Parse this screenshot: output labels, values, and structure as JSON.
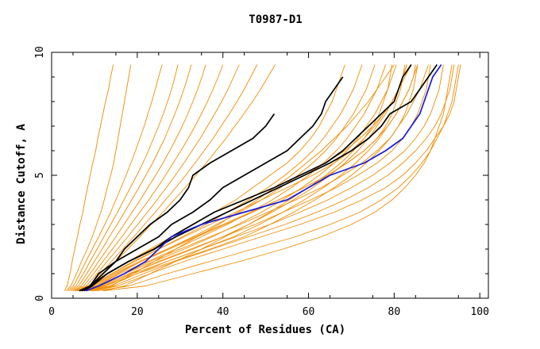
{
  "chart_data": {
    "type": "line",
    "title": "T0987-D1",
    "xlabel": "Percent of Residues (CA)",
    "ylabel": "Distance Cutoff, A",
    "xlim": [
      0,
      102
    ],
    "ylim": [
      0,
      10
    ],
    "xticks": [
      0,
      20,
      40,
      60,
      80,
      100
    ],
    "yticks": [
      0,
      5,
      10
    ],
    "grid": false,
    "colors": {
      "bundle": "#f08c00",
      "highlight_black": "#000000",
      "highlight_blue": "#1a1adc"
    },
    "y_levels": [
      0.3,
      0.5,
      1,
      1.5,
      2,
      2.5,
      3,
      3.5,
      4,
      4.5,
      5,
      5.5,
      6,
      6.5,
      7,
      7.5,
      8,
      8.5,
      9,
      9.5
    ],
    "series": [
      {
        "role": "highlight",
        "color": "#000000",
        "x": [
          7,
          9,
          11,
          15,
          17,
          20,
          23,
          27,
          30,
          32,
          33,
          37,
          42,
          47,
          50,
          52
        ]
      },
      {
        "role": "highlight",
        "color": "#000000",
        "x": [
          6.5,
          9,
          12,
          15,
          20,
          25,
          28,
          33,
          37,
          40,
          45,
          50,
          55,
          58,
          61,
          63,
          64,
          66,
          68
        ]
      },
      {
        "role": "highlight",
        "color": "#000000",
        "x": [
          7,
          9,
          13,
          18,
          24,
          28,
          33,
          38,
          45,
          52,
          58,
          64,
          68,
          71,
          74,
          77,
          80,
          81,
          82,
          84,
          87,
          89,
          91
        ]
      },
      {
        "role": "highlight",
        "color": "#000000",
        "x": [
          7.5,
          9.5,
          13,
          18,
          24,
          29,
          35,
          41,
          47,
          53,
          59,
          65,
          70,
          74,
          77,
          79,
          84,
          86,
          88,
          90,
          92,
          93
        ]
      },
      {
        "role": "highlight",
        "color": "#1a1adc",
        "x": [
          8,
          11,
          17,
          22,
          25,
          28,
          35,
          45,
          55,
          60,
          65,
          73,
          78,
          82,
          84,
          86,
          87,
          88,
          89,
          91,
          93,
          94
        ]
      },
      {
        "role": "bundle",
        "x": [
          3.0,
          3.6,
          4.3,
          4.8,
          5.4,
          6.0,
          6.6,
          7.3,
          7.8,
          8.4,
          9.0,
          9.6,
          10.3,
          10.8,
          11.4,
          12.0,
          12.6,
          13.3,
          13.8,
          14.4
        ]
      },
      {
        "role": "bundle",
        "x": [
          3.4,
          4.5,
          5.8,
          7.0,
          8.3,
          9.5,
          10.5,
          11.5,
          12.3,
          13.0,
          13.8,
          14.5,
          15.0,
          15.5,
          16.0,
          16.5,
          17.0,
          17.5,
          18.0,
          18.5
        ]
      },
      {
        "role": "bundle",
        "x": [
          3.8,
          5.1,
          6.6,
          8.0,
          9.5,
          11.0,
          12.4,
          13.8,
          15.0,
          16.2,
          17.4,
          18.5,
          19.6,
          20.6,
          21.6,
          22.5,
          23.4,
          24.2,
          25.0,
          25.8
        ]
      },
      {
        "role": "bundle",
        "x": [
          4.2,
          5.7,
          7.4,
          9.0,
          10.6,
          12.2,
          13.8,
          15.4,
          16.9,
          18.4,
          19.9,
          21.3,
          22.6,
          23.8,
          25.0,
          26.1,
          27.1,
          28.0,
          28.8,
          29.5
        ]
      },
      {
        "role": "bundle",
        "x": [
          4.6,
          6.3,
          8.2,
          10.0,
          11.8,
          13.5,
          15.3,
          17.0,
          18.7,
          20.4,
          22.0,
          23.6,
          25.0,
          26.4,
          27.6,
          28.8,
          29.9,
          30.9,
          31.8,
          32.6
        ]
      },
      {
        "role": "bundle",
        "x": [
          5.0,
          6.9,
          9.0,
          11.0,
          13.0,
          15.0,
          16.9,
          18.8,
          20.7,
          22.5,
          24.3,
          26.0,
          27.6,
          29.1,
          30.5,
          31.8,
          33.0,
          34.1,
          35.1,
          36.0
        ]
      },
      {
        "role": "bundle",
        "x": [
          5.4,
          7.5,
          9.8,
          12.0,
          14.2,
          16.4,
          18.5,
          20.6,
          22.7,
          24.7,
          26.6,
          28.4,
          30.2,
          31.9,
          33.5,
          35.0,
          36.4,
          37.7,
          38.9,
          40.0
        ]
      },
      {
        "role": "bundle",
        "x": [
          5.8,
          8.1,
          10.6,
          13.0,
          15.4,
          17.8,
          20.1,
          22.4,
          24.6,
          26.8,
          28.9,
          30.9,
          32.8,
          34.7,
          36.4,
          38.1,
          39.7,
          41.2,
          42.5,
          43.8
        ]
      },
      {
        "role": "bundle",
        "x": [
          6.2,
          8.7,
          11.4,
          14.0,
          16.6,
          19.2,
          21.7,
          24.2,
          26.6,
          29.0,
          31.3,
          33.5,
          35.6,
          37.7,
          39.6,
          41.5,
          43.3,
          45.0,
          46.5,
          48.0
        ]
      },
      {
        "role": "bundle",
        "x": [
          6.6,
          9.3,
          12.2,
          15.0,
          17.8,
          20.6,
          23.3,
          26.0,
          28.6,
          31.2,
          33.7,
          36.1,
          38.4,
          40.7,
          42.8,
          44.9,
          46.9,
          48.8,
          50.5,
          52.2
        ]
      },
      {
        "role": "bundle",
        "x": [
          6.0,
          9.0,
          13.0,
          18.0,
          23.0,
          28.0,
          33.0,
          38.0,
          43.0,
          47.0,
          51.0,
          55.0,
          58.0,
          60.5,
          62.5,
          64.0,
          65.5,
          66.5,
          67.5,
          68.5
        ]
      },
      {
        "role": "bundle",
        "x": [
          6.3,
          9.5,
          14.0,
          19.5,
          25.0,
          30.5,
          36.0,
          41.0,
          46.0,
          50.5,
          54.5,
          58.0,
          61.0,
          63.5,
          65.5,
          67.5,
          69.0,
          70.5,
          71.5,
          72.5
        ]
      },
      {
        "role": "bundle",
        "x": [
          6.6,
          10.0,
          15.0,
          21.0,
          27.0,
          33.0,
          38.5,
          44.0,
          49.0,
          53.5,
          57.5,
          61.0,
          64.0,
          66.5,
          68.5,
          70.5,
          72.0,
          73.5,
          74.5,
          75.5
        ]
      },
      {
        "role": "bundle",
        "x": [
          6.9,
          10.5,
          16.0,
          22.5,
          29.0,
          35.0,
          41.0,
          46.5,
          51.5,
          56.0,
          60.0,
          63.5,
          66.5,
          69.0,
          71.0,
          73.0,
          74.5,
          76.0,
          77.0,
          78.0
        ]
      },
      {
        "role": "bundle",
        "x": [
          7.2,
          11.0,
          17.0,
          24.0,
          31.0,
          37.5,
          43.5,
          49.0,
          54.0,
          58.5,
          62.5,
          66.0,
          69.0,
          71.5,
          73.5,
          75.5,
          77.0,
          78.5,
          79.5,
          80.5
        ]
      },
      {
        "role": "bundle",
        "x": [
          7.5,
          11.5,
          18.0,
          25.5,
          33.0,
          40.0,
          46.0,
          51.5,
          56.5,
          61.0,
          65.0,
          68.5,
          71.5,
          74.0,
          76.0,
          78.0,
          79.5,
          81.0,
          82.0,
          83.0
        ]
      },
      {
        "role": "bundle",
        "x": [
          7.8,
          12.0,
          19.0,
          27.0,
          35.0,
          42.5,
          48.5,
          54.0,
          59.0,
          63.5,
          67.5,
          71.0,
          74.0,
          76.5,
          78.5,
          80.5,
          82.0,
          83.5,
          84.5,
          85.5
        ]
      },
      {
        "role": "bundle",
        "x": [
          8.1,
          12.5,
          20.0,
          28.5,
          37.0,
          45.0,
          51.0,
          56.5,
          61.5,
          66.0,
          70.0,
          73.5,
          76.5,
          79.0,
          81.0,
          83.0,
          84.5,
          86.0,
          87.0,
          88.0
        ]
      },
      {
        "role": "bundle",
        "x": [
          6.5,
          9.5,
          14.0,
          19.0,
          25.0,
          31.0,
          37.0,
          43.0,
          49.0,
          55.0,
          61.0,
          66.0,
          70.0,
          73.0,
          75.0,
          76.5,
          77.5,
          78.5,
          79.0,
          79.5
        ]
      },
      {
        "role": "bundle",
        "x": [
          7.0,
          10.5,
          15.5,
          21.0,
          27.5,
          34.0,
          40.5,
          47.0,
          53.0,
          59.0,
          64.5,
          69.0,
          73.0,
          76.0,
          78.0,
          79.5,
          80.5,
          81.5,
          82.0,
          82.5
        ]
      },
      {
        "role": "bundle",
        "x": [
          7.5,
          11.5,
          17.0,
          23.0,
          30.0,
          37.0,
          44.0,
          50.5,
          57.0,
          63.0,
          68.0,
          72.5,
          76.0,
          79.0,
          81.0,
          82.5,
          83.5,
          84.5,
          85.0,
          85.5
        ]
      },
      {
        "role": "bundle",
        "x": [
          8.0,
          12.5,
          18.5,
          25.0,
          32.5,
          40.0,
          47.5,
          54.0,
          60.5,
          66.5,
          71.5,
          76.0,
          79.5,
          82.0,
          84.0,
          85.5,
          86.5,
          87.5,
          88.0,
          88.5
        ]
      },
      {
        "role": "bundle",
        "x": [
          8.5,
          13.5,
          20.0,
          27.0,
          35.0,
          43.0,
          51.0,
          58.0,
          64.5,
          70.0,
          75.0,
          79.0,
          82.5,
          85.0,
          87.0,
          88.5,
          89.5,
          90.5,
          91.0,
          91.5
        ]
      },
      {
        "role": "bundle",
        "x": [
          9.0,
          14.5,
          21.5,
          29.0,
          37.5,
          46.0,
          54.5,
          62.0,
          68.5,
          74.0,
          78.5,
          82.0,
          85.0,
          87.5,
          89.5,
          91.0,
          92.0,
          93.0,
          93.5,
          94.0
        ]
      },
      {
        "role": "bundle",
        "x": [
          9.5,
          15.5,
          23.0,
          31.0,
          40.0,
          49.0,
          58.0,
          66.0,
          72.5,
          78.0,
          82.0,
          85.0,
          87.5,
          89.5,
          91.5,
          93.0,
          94.0,
          94.5,
          95.0,
          95.5
        ]
      },
      {
        "role": "bundle",
        "x": [
          10.5,
          18.0,
          27.0,
          37.0,
          47.0,
          57.0,
          65.0,
          72.0,
          77.0,
          81.0,
          84.0,
          86.5,
          88.5,
          90.0,
          91.5,
          92.5,
          93.5,
          94.0,
          94.5,
          95.0
        ]
      },
      {
        "role": "bundle",
        "x": [
          12.0,
          22.0,
          33.0,
          44.0,
          54.0,
          63.0,
          70.0,
          75.5,
          79.5,
          82.5,
          85.0,
          87.0,
          88.5,
          89.5,
          90.5,
          91.5,
          92.0,
          92.5,
          93.0,
          93.5
        ]
      },
      {
        "role": "bundle",
        "x": [
          5.5,
          8.5,
          13.0,
          18.0,
          23.5,
          29.0,
          35.0,
          41.0,
          47.0,
          53.0,
          59.0,
          64.0,
          68.5,
          72.0,
          75.0,
          77.5,
          79.5,
          81.0,
          82.0,
          83.0
        ]
      },
      {
        "role": "bundle",
        "x": [
          6.0,
          9.5,
          14.5,
          20.5,
          27.0,
          33.5,
          40.0,
          46.5,
          53.0,
          59.0,
          64.5,
          69.0,
          73.0,
          76.0,
          78.5,
          80.5,
          82.0,
          83.5,
          84.5,
          85.0
        ]
      },
      {
        "role": "bundle",
        "x": [
          10.0,
          14.0,
          19.0,
          24.0,
          29.0,
          34.0,
          39.0,
          43.5,
          48.0,
          52.0,
          56.0,
          59.5,
          63.0,
          66.0,
          69.0,
          71.5,
          74.0,
          76.0,
          78.0,
          80.0
        ]
      },
      {
        "role": "bundle",
        "x": [
          12.0,
          17.0,
          23.0,
          29.0,
          35.0,
          40.5,
          46.0,
          51.0,
          55.5,
          60.0,
          64.0,
          67.5,
          70.5,
          73.0,
          75.5,
          77.5,
          79.5,
          81.0,
          82.5,
          84.0
        ]
      }
    ]
  }
}
